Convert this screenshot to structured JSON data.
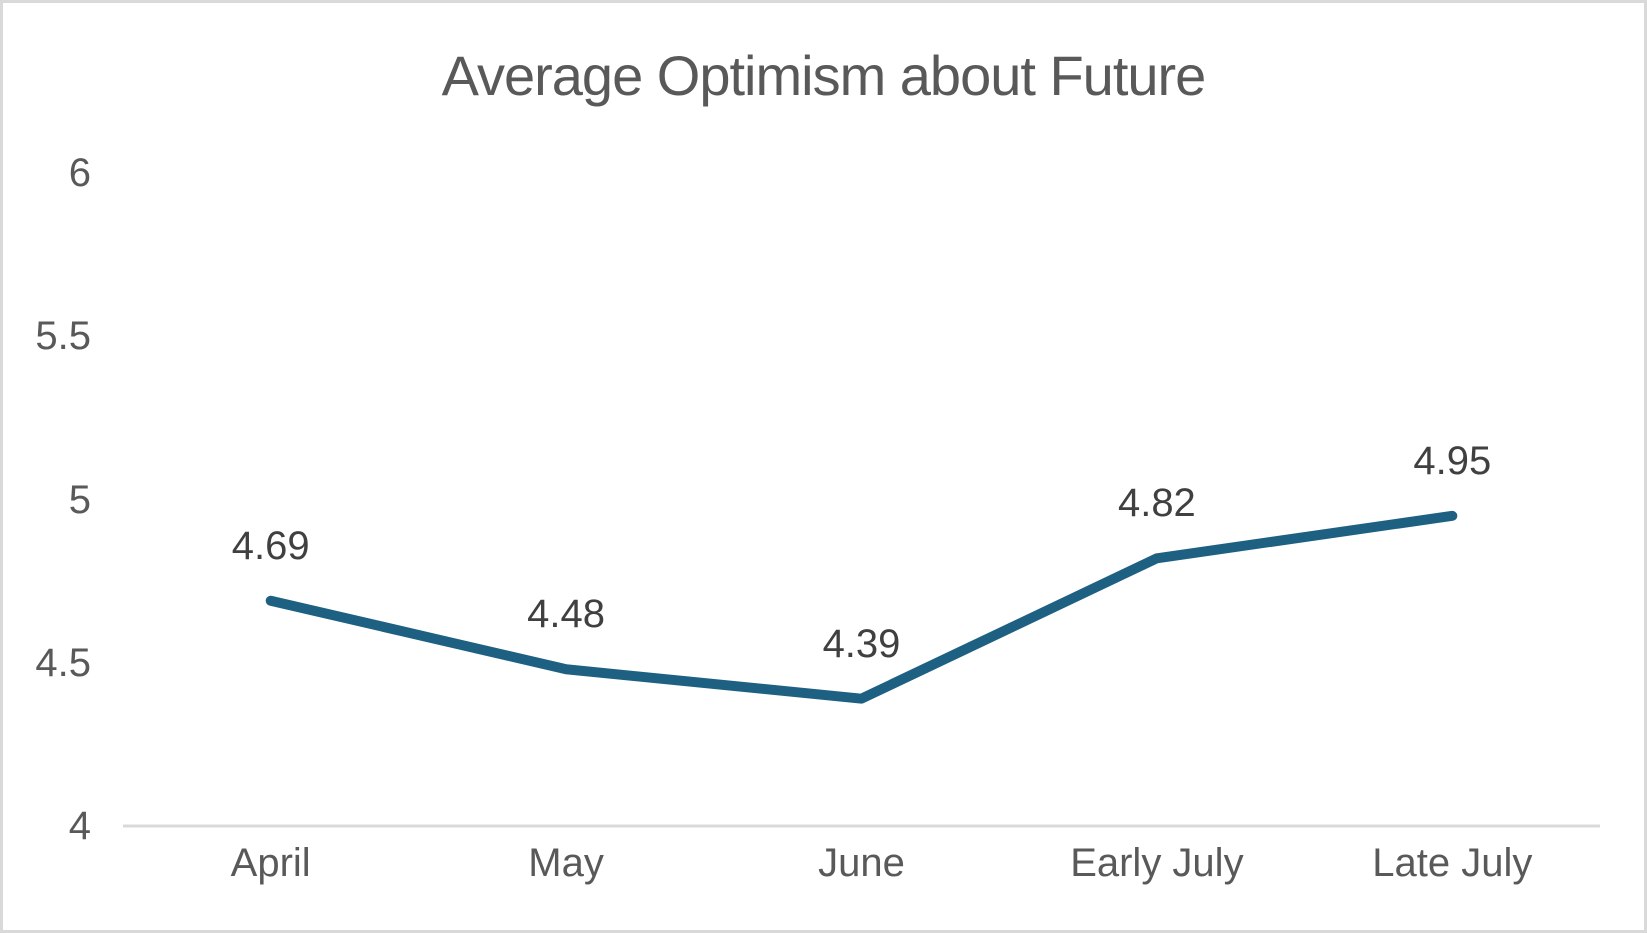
{
  "chart_data": {
    "type": "line",
    "title": "Average Optimism about Future",
    "categories": [
      "April",
      "May",
      "June",
      "Early July",
      "Late July"
    ],
    "values": [
      4.69,
      4.48,
      4.39,
      4.82,
      4.95
    ],
    "data_labels": [
      "4.69",
      "4.48",
      "4.39",
      "4.82",
      "4.95"
    ],
    "xlabel": "",
    "ylabel": "",
    "ylim": [
      4,
      6
    ],
    "y_ticks": [
      6,
      5.5,
      5,
      4.5,
      4
    ],
    "y_tick_labels": [
      "6",
      "5.5",
      "5",
      "4.5",
      "4"
    ],
    "grid": false,
    "legend": "none",
    "data_label_position": "above",
    "colors": {
      "line": "#1E6081",
      "axis_line": "#D9D9D9",
      "tick_label": "#595959",
      "data_label": "#404040",
      "title": "#595959",
      "background": "#FFFFFF",
      "frame_border": "#D9D9D9"
    }
  }
}
